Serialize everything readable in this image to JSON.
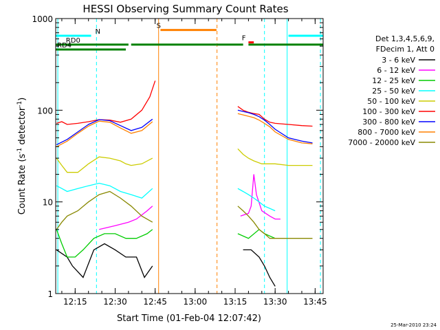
{
  "chart_data": {
    "type": "line",
    "title": "HESSI Observing Summary Count Rates",
    "xlabel": "Start Time (01-Feb-04 12:07:42)",
    "ylabel_main": "Count Rate (s",
    "ylabel_sup1": "-1",
    "ylabel_mid": " detector",
    "ylabel_sup2": "-1",
    "ylabel_end": ")",
    "date_stamp": "25-Mar-2010 23:24",
    "x_ticks": [
      {
        "label": "12:15",
        "min": 15
      },
      {
        "label": "12:30",
        "min": 30
      },
      {
        "label": "12:45",
        "min": 45
      },
      {
        "label": "13:00",
        "min": 60
      },
      {
        "label": "13:15",
        "min": 75
      },
      {
        "label": "13:30",
        "min": 90
      },
      {
        "label": "13:45",
        "min": 105
      }
    ],
    "y_ticks": [
      {
        "label": "1",
        "value": 1
      },
      {
        "label": "10",
        "value": 10
      },
      {
        "label": "100",
        "value": 100
      },
      {
        "label": "1000",
        "value": 1000
      }
    ],
    "xlim_minutes_after_12h": [
      7.7,
      108
    ],
    "ylim": [
      1,
      1000
    ],
    "y_scale": "log",
    "legend_header": [
      "Det 1,3,4,5,6,9,",
      "FDecim 1, Att 0"
    ],
    "legend_placement": "right",
    "series": [
      {
        "name": "3 - 6 keV",
        "color": "#000000",
        "segments": [
          [
            [
              8,
              3
            ],
            [
              12,
              2.5
            ],
            [
              14,
              2
            ],
            [
              18,
              1.5
            ],
            [
              22,
              3
            ],
            [
              26,
              3.5
            ],
            [
              30,
              3
            ],
            [
              34,
              2.5
            ],
            [
              38,
              2.5
            ],
            [
              41,
              1.5
            ],
            [
              44,
              2
            ]
          ],
          [
            [
              78,
              3
            ],
            [
              81,
              3
            ],
            [
              84,
              2.5
            ],
            [
              86,
              2
            ],
            [
              88,
              1.5
            ],
            [
              90,
              1.2
            ]
          ]
        ]
      },
      {
        "name": "6 - 12 keV",
        "color": "#ff00ff",
        "segments": [
          [
            [
              24,
              5
            ],
            [
              30,
              5.5
            ],
            [
              35,
              6
            ],
            [
              38,
              6.5
            ],
            [
              42,
              8
            ],
            [
              44,
              9
            ]
          ],
          [
            [
              77,
              7
            ],
            [
              80,
              7.5
            ],
            [
              81,
              9
            ],
            [
              82,
              20
            ],
            [
              83,
              12
            ],
            [
              85,
              8
            ],
            [
              88,
              7
            ],
            [
              90,
              6.5
            ],
            [
              92,
              6.5
            ]
          ]
        ]
      },
      {
        "name": "12 - 25 keV",
        "color": "#00cc00",
        "segments": [
          [
            [
              8,
              5
            ],
            [
              10,
              3.5
            ],
            [
              12,
              2.5
            ],
            [
              15,
              2.5
            ],
            [
              18,
              3
            ],
            [
              22,
              4
            ],
            [
              26,
              4.5
            ],
            [
              30,
              4.5
            ],
            [
              34,
              4
            ],
            [
              38,
              4
            ],
            [
              42,
              4.5
            ],
            [
              44,
              5
            ]
          ],
          [
            [
              76,
              4.5
            ],
            [
              80,
              4
            ],
            [
              84,
              5
            ],
            [
              86,
              4.5
            ],
            [
              90,
              4
            ]
          ]
        ]
      },
      {
        "name": "25 - 50 keV",
        "color": "#00ffff",
        "segments": [
          [
            [
              8,
              15
            ],
            [
              10,
              14
            ],
            [
              12,
              13
            ],
            [
              16,
              14
            ],
            [
              20,
              15
            ],
            [
              24,
              16
            ],
            [
              28,
              15
            ],
            [
              32,
              13
            ],
            [
              36,
              12
            ],
            [
              40,
              11
            ],
            [
              44,
              14
            ]
          ],
          [
            [
              76,
              14
            ],
            [
              78,
              13
            ],
            [
              80,
              12
            ],
            [
              82,
              11
            ],
            [
              84,
              10
            ],
            [
              86,
              9
            ],
            [
              88,
              8.5
            ],
            [
              90,
              8
            ]
          ]
        ]
      },
      {
        "name": "50 - 100 keV",
        "color": "#cccc00",
        "segments": [
          [
            [
              8,
              30
            ],
            [
              10,
              25
            ],
            [
              12,
              21
            ],
            [
              16,
              21
            ],
            [
              20,
              26
            ],
            [
              24,
              31
            ],
            [
              28,
              30
            ],
            [
              32,
              28
            ],
            [
              34,
              26
            ],
            [
              36,
              25
            ],
            [
              40,
              26
            ],
            [
              44,
              30
            ]
          ],
          [
            [
              76,
              38
            ],
            [
              78,
              33
            ],
            [
              80,
              30
            ],
            [
              82,
              28
            ],
            [
              85,
              26
            ],
            [
              90,
              26
            ],
            [
              95,
              25
            ],
            [
              100,
              25
            ],
            [
              104,
              25
            ]
          ]
        ]
      },
      {
        "name": "100 - 300 keV",
        "color": "#ff0000",
        "segments": [
          [
            [
              8,
              72
            ],
            [
              10,
              75
            ],
            [
              12,
              70
            ],
            [
              16,
              72
            ],
            [
              20,
              75
            ],
            [
              24,
              79
            ],
            [
              28,
              78
            ],
            [
              32,
              74
            ],
            [
              36,
              80
            ],
            [
              40,
              100
            ],
            [
              43,
              140
            ],
            [
              45,
              210
            ]
          ],
          [
            [
              76,
              110
            ],
            [
              78,
              100
            ],
            [
              80,
              95
            ],
            [
              82,
              92
            ],
            [
              84,
              90
            ],
            [
              86,
              80
            ],
            [
              88,
              74
            ],
            [
              90,
              72
            ],
            [
              95,
              70
            ],
            [
              100,
              68
            ],
            [
              104,
              67
            ]
          ]
        ]
      },
      {
        "name": "300 - 800 keV",
        "color": "#0000ff",
        "segments": [
          [
            [
              8,
              42
            ],
            [
              12,
              48
            ],
            [
              16,
              58
            ],
            [
              20,
              70
            ],
            [
              24,
              79
            ],
            [
              28,
              77
            ],
            [
              32,
              68
            ],
            [
              36,
              60
            ],
            [
              40,
              65
            ],
            [
              44,
              80
            ]
          ],
          [
            [
              76,
              100
            ],
            [
              78,
              97
            ],
            [
              80,
              94
            ],
            [
              82,
              90
            ],
            [
              84,
              85
            ],
            [
              86,
              78
            ],
            [
              88,
              70
            ],
            [
              90,
              62
            ],
            [
              95,
              50
            ],
            [
              100,
              46
            ],
            [
              104,
              44
            ]
          ]
        ]
      },
      {
        "name": "800 - 7000 keV",
        "color": "#ff8000",
        "segments": [
          [
            [
              8,
              40
            ],
            [
              12,
              46
            ],
            [
              16,
              56
            ],
            [
              20,
              67
            ],
            [
              24,
              76
            ],
            [
              28,
              74
            ],
            [
              32,
              64
            ],
            [
              36,
              56
            ],
            [
              40,
              60
            ],
            [
              44,
              75
            ]
          ],
          [
            [
              76,
              92
            ],
            [
              78,
              89
            ],
            [
              80,
              86
            ],
            [
              82,
              83
            ],
            [
              84,
              78
            ],
            [
              86,
              72
            ],
            [
              88,
              66
            ],
            [
              90,
              58
            ],
            [
              95,
              48
            ],
            [
              100,
              44
            ],
            [
              104,
              43
            ]
          ]
        ]
      },
      {
        "name": "7000 - 20000 keV",
        "color": "#888800",
        "segments": [
          [
            [
              8,
              5
            ],
            [
              10,
              6
            ],
            [
              12,
              7
            ],
            [
              16,
              8
            ],
            [
              20,
              10
            ],
            [
              24,
              12
            ],
            [
              28,
              13
            ],
            [
              32,
              11
            ],
            [
              36,
              9
            ],
            [
              40,
              7
            ],
            [
              44,
              6
            ]
          ],
          [
            [
              76,
              9
            ],
            [
              78,
              8
            ],
            [
              80,
              7
            ],
            [
              82,
              6
            ],
            [
              84,
              5
            ],
            [
              86,
              4.5
            ],
            [
              88,
              4
            ],
            [
              90,
              4
            ],
            [
              95,
              4
            ],
            [
              100,
              4
            ],
            [
              104,
              4
            ]
          ]
        ]
      }
    ],
    "annotations": [
      {
        "label": "N",
        "color": "#00ffff",
        "segments": [
          [
            7.7,
            21
          ]
        ],
        "level": 650,
        "label_at": 22
      },
      {
        "label": "S",
        "color": "#ff8000",
        "segments": [
          [
            47,
            68
          ]
        ],
        "level": 750,
        "label_at": 45
      },
      {
        "label": "F",
        "color": "#ff0000",
        "segments": [
          [
            80,
            82
          ]
        ],
        "level": 550,
        "label_at": 77
      },
      {
        "label": "",
        "color": "#00ffff",
        "segments": [
          [
            95,
            108
          ]
        ],
        "level": 650
      },
      {
        "label": "RD0",
        "color": "#008000",
        "segments": [
          [
            7.7,
            35
          ],
          [
            36,
            68
          ],
          [
            68,
            78
          ],
          [
            80,
            108
          ]
        ],
        "level": 520,
        "label_at": 11
      },
      {
        "label": "RD4",
        "color": "#008000",
        "segments": [
          [
            7.7,
            34
          ]
        ],
        "level": 460,
        "label_at": 7.7
      }
    ],
    "vertical_lines": [
      {
        "min": 8.5,
        "color": "#00ffff",
        "dashed": false
      },
      {
        "min": 23,
        "color": "#00ffff",
        "dashed": true
      },
      {
        "min": 46.3,
        "color": "#ff8000",
        "dashed": false
      },
      {
        "min": 68.2,
        "color": "#ff8000",
        "dashed": true
      },
      {
        "min": 86,
        "color": "#00ffff",
        "dashed": true
      },
      {
        "min": 94.5,
        "color": "#00ffff",
        "dashed": false
      },
      {
        "min": 107,
        "color": "#00ffff",
        "dashed": true
      }
    ]
  }
}
